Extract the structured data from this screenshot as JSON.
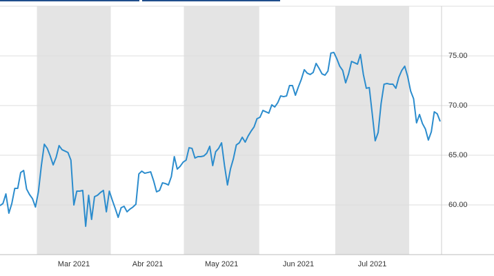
{
  "chart_data": {
    "type": "line",
    "categories": [
      null,
      null,
      null,
      null,
      null,
      null,
      null,
      null,
      null,
      null,
      null,
      null,
      null,
      null,
      null,
      null,
      null,
      null,
      null,
      null,
      null,
      null,
      null,
      null,
      null,
      "Mar 2021",
      null,
      null,
      null,
      null,
      null,
      null,
      null,
      null,
      null,
      null,
      null,
      null,
      null,
      null,
      null,
      null,
      null,
      null,
      null,
      null,
      null,
      null,
      null,
      null,
      "Abr 2021",
      null,
      null,
      null,
      null,
      null,
      null,
      null,
      null,
      null,
      null,
      null,
      null,
      null,
      null,
      null,
      null,
      null,
      null,
      null,
      null,
      null,
      null,
      null,
      null,
      "May 2021",
      null,
      null,
      null,
      null,
      null,
      null,
      null,
      null,
      null,
      null,
      null,
      null,
      null,
      null,
      null,
      null,
      null,
      null,
      null,
      null,
      null,
      null,
      null,
      null,
      null,
      "Jun 2021",
      null,
      null,
      null,
      null,
      null,
      null,
      null,
      null,
      null,
      null,
      null,
      null,
      null,
      null,
      null,
      null,
      null,
      null,
      null,
      null,
      null,
      null,
      null,
      null,
      "Jul 2021",
      null,
      null,
      null,
      null,
      null,
      null,
      null,
      null,
      null,
      null,
      null,
      null,
      null,
      null,
      null,
      null,
      null,
      null,
      null,
      null,
      null,
      null,
      null
    ],
    "values": [
      59.93,
      60.14,
      61.11,
      59.17,
      60.14,
      61.67,
      61.67,
      63.26,
      63.47,
      61.6,
      61.04,
      60.63,
      59.79,
      61.32,
      63.96,
      66.11,
      65.69,
      64.93,
      64.03,
      64.79,
      65.97,
      65.56,
      65.42,
      65.28,
      64.51,
      60.0,
      61.39,
      61.39,
      61.46,
      57.85,
      60.97,
      58.54,
      60.83,
      60.97,
      61.25,
      61.46,
      59.31,
      61.39,
      60.49,
      59.65,
      58.75,
      59.72,
      59.86,
      59.31,
      59.58,
      59.79,
      60.07,
      63.12,
      63.4,
      63.19,
      63.26,
      63.33,
      62.43,
      61.32,
      61.46,
      62.22,
      62.15,
      62.01,
      62.85,
      64.86,
      63.61,
      63.89,
      64.31,
      64.51,
      65.76,
      65.69,
      64.72,
      64.86,
      64.86,
      64.93,
      65.21,
      65.9,
      63.96,
      65.35,
      65.69,
      66.25,
      63.96,
      62.01,
      63.61,
      64.65,
      66.04,
      66.25,
      66.81,
      66.32,
      66.94,
      67.43,
      67.85,
      68.68,
      68.82,
      69.51,
      69.37,
      69.24,
      70.07,
      69.86,
      70.28,
      70.97,
      70.9,
      70.97,
      72.01,
      72.01,
      71.04,
      71.88,
      72.64,
      73.61,
      73.26,
      73.13,
      73.33,
      74.24,
      73.75,
      73.19,
      73.06,
      73.47,
      75.28,
      75.35,
      74.72,
      73.96,
      73.54,
      72.29,
      73.19,
      74.44,
      74.31,
      74.17,
      75.14,
      73.13,
      71.74,
      71.81,
      69.17,
      66.46,
      67.29,
      70.21,
      72.15,
      72.22,
      72.15,
      72.15,
      71.74,
      72.85,
      73.54,
      73.96,
      72.92,
      71.46,
      70.69,
      68.26,
      69.1,
      68.19,
      67.64,
      66.53,
      67.36,
      69.37,
      69.17,
      68.4
    ],
    "color": "#2b8ccd",
    "ylim": [
      55,
      80
    ],
    "yticks": [
      {
        "value": 60,
        "label": "60.00"
      },
      {
        "value": 65,
        "label": "65.00"
      },
      {
        "value": 70,
        "label": "70.00"
      },
      {
        "value": 75,
        "label": "75.00"
      }
    ],
    "grid": true
  }
}
